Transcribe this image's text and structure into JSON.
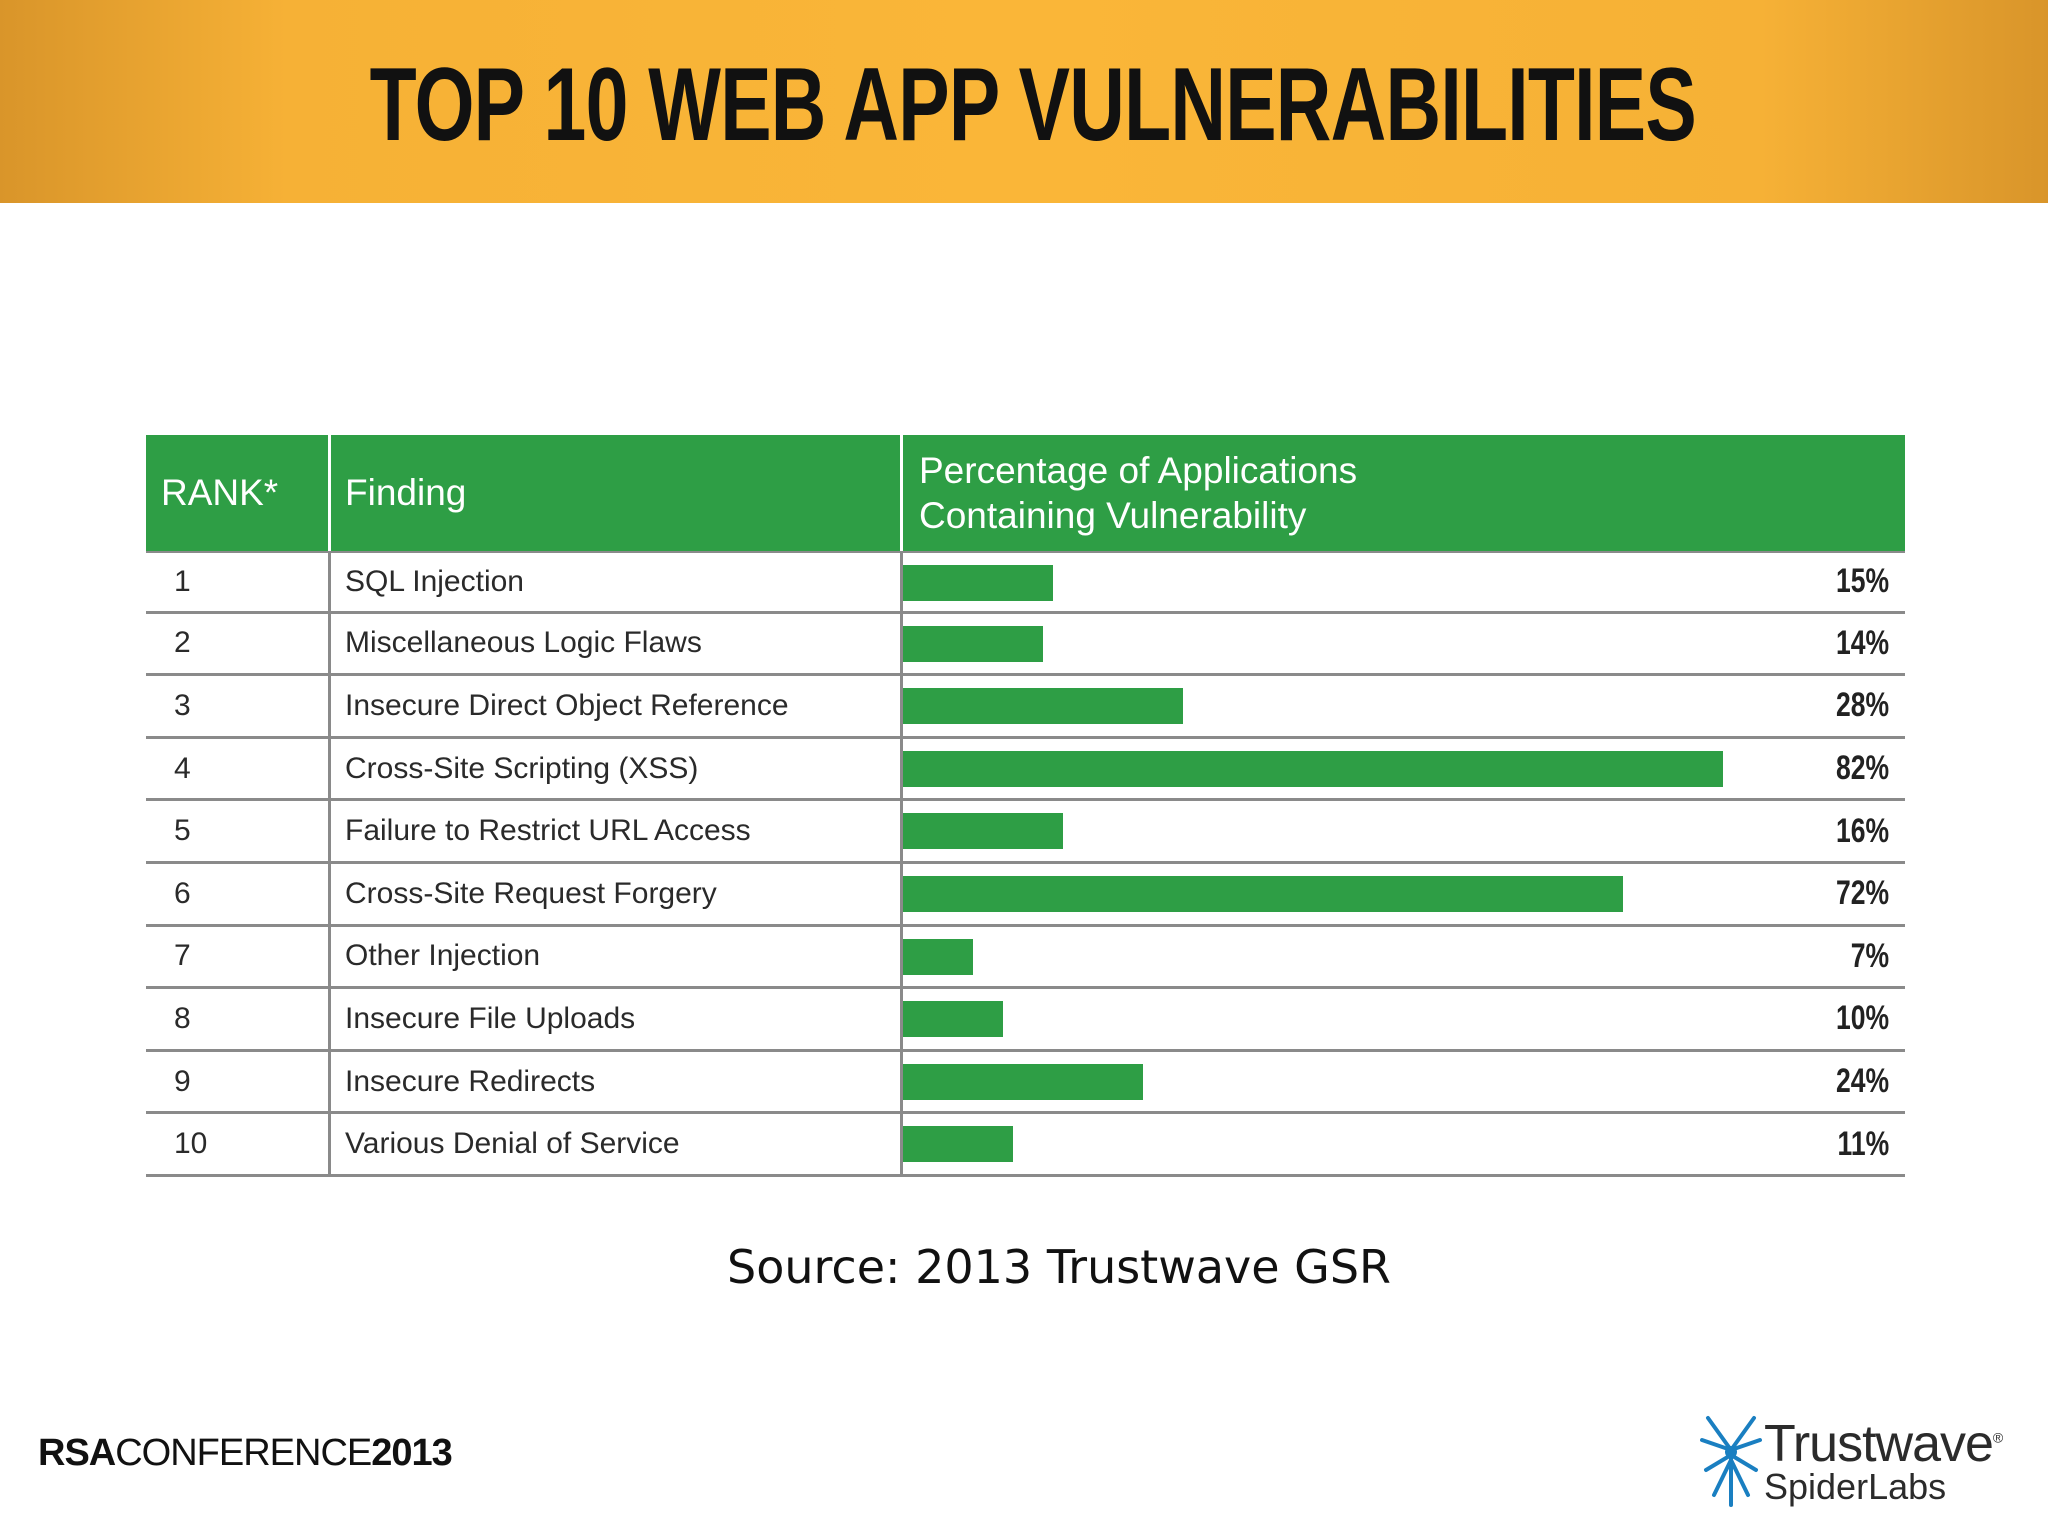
{
  "slide": {
    "title": "TOP 10 WEB APP VULNERABILITIES",
    "source": "Source: 2013 Trustwave GSR",
    "footer_left": {
      "brand_bold": "RSA",
      "brand_regular": "CONFERENCE",
      "year": "2013"
    },
    "logo": {
      "wordmark": "Trustwave",
      "sub": "SpiderLabs",
      "registered": "®"
    },
    "colors": {
      "band": "#fab638",
      "bar": "#2e9e45"
    }
  },
  "chart_data": {
    "type": "bar",
    "columns": [
      "RANK*",
      "Finding",
      "Percentage of Applications",
      "Containing Vulnerability"
    ],
    "rows": [
      {
        "rank": "1",
        "finding": "SQL Injection",
        "value": 15,
        "label": "15%"
      },
      {
        "rank": "2",
        "finding": "Miscellaneous Logic Flaws",
        "value": 14,
        "label": "14%"
      },
      {
        "rank": "3",
        "finding": "Insecure Direct Object Reference",
        "value": 28,
        "label": "28%"
      },
      {
        "rank": "4",
        "finding": "Cross-Site Scripting (XSS)",
        "value": 82,
        "label": "82%"
      },
      {
        "rank": "5",
        "finding": "Failure to Restrict URL Access",
        "value": 16,
        "label": "16%"
      },
      {
        "rank": "6",
        "finding": "Cross-Site Request Forgery",
        "value": 72,
        "label": "72%"
      },
      {
        "rank": "7",
        "finding": "Other Injection",
        "value": 7,
        "label": "7%"
      },
      {
        "rank": "8",
        "finding": "Insecure File Uploads",
        "value": 10,
        "label": "10%"
      },
      {
        "rank": "9",
        "finding": "Insecure Redirects",
        "value": 24,
        "label": "24%"
      },
      {
        "rank": "10",
        "finding": "Various Denial of Service",
        "value": 11,
        "label": "11%"
      }
    ],
    "xlim": [
      0,
      100
    ]
  }
}
